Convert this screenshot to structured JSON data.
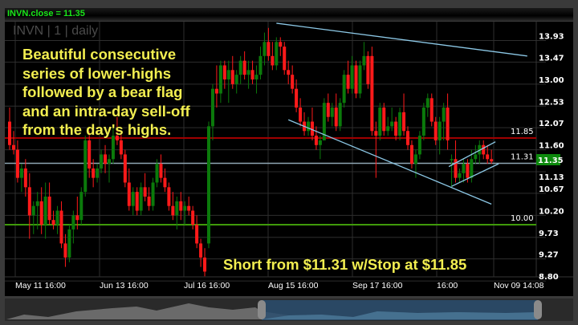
{
  "header": {
    "title": "INVN.close = 11.35"
  },
  "watermark": "INVN | 1 | daily",
  "annotations": {
    "main_note": [
      "Beautiful consecutive",
      "series of lower-highs",
      "followed by a bear flag",
      "and an intra-day sell-off",
      "from the day's highs."
    ],
    "trade_note": "Short from $11.31 w/Stop at $11.85"
  },
  "colors": {
    "up": "#0b7a0b",
    "down": "#ff1a1a",
    "stop_line": "#a00000",
    "entry_line": "#8fa6b4",
    "support_line": "#3f9a0a",
    "trend_line": "#8cc8e6",
    "note_text": "#f2ee50",
    "price_tag": "#0d8a0d"
  },
  "chart_data": {
    "type": "candlestick",
    "symbol": "INVN",
    "interval": "daily",
    "last_close": 11.35,
    "price_tag": "11.35",
    "y_ticks": [
      "13.93",
      "13.47",
      "13.00",
      "12.53",
      "12.07",
      "11.60",
      "11.13",
      "10.67",
      "10.20",
      "9.73",
      "9.27",
      "8.80"
    ],
    "ylim": [
      8.8,
      13.93
    ],
    "x_tick_labels": [
      "May 11 16:00",
      "Jun 13 16:00",
      "Jul 16 16:00",
      "Aug 15 16:00",
      "Sep 17 16:00",
      "16:00",
      "Nov 09 14:08"
    ],
    "grid": true,
    "horizontal_levels": [
      {
        "label": "11.85",
        "value": 11.85,
        "color_key": "stop_line"
      },
      {
        "label": "11.31",
        "value": 11.31,
        "color_key": "entry_line"
      },
      {
        "label": "10.00",
        "value": 10.0,
        "color_key": "support_line"
      }
    ],
    "trend_lines": [
      {
        "from": [
          67,
          14.3
        ],
        "to": [
          130,
          13.6
        ]
      },
      {
        "from": [
          70,
          12.24
        ],
        "to": [
          121,
          10.44
        ]
      },
      {
        "from": [
          110.3,
          11.24
        ],
        "to": [
          122,
          11.77
        ]
      },
      {
        "from": [
          111,
          10.82
        ],
        "to": [
          122.8,
          11.3
        ]
      }
    ],
    "ohlc": [
      [
        12.2,
        12.5,
        11.6,
        11.7
      ],
      [
        11.7,
        12.0,
        11.5,
        11.6
      ],
      [
        11.6,
        11.8,
        10.9,
        11.0
      ],
      [
        11.0,
        11.3,
        10.7,
        11.2
      ],
      [
        11.2,
        11.4,
        10.6,
        10.8
      ],
      [
        10.8,
        11.1,
        9.7,
        10.2
      ],
      [
        10.2,
        10.5,
        9.8,
        10.4
      ],
      [
        10.4,
        10.7,
        9.9,
        10.5
      ],
      [
        10.5,
        10.8,
        9.8,
        10.0
      ],
      [
        10.0,
        10.9,
        9.7,
        10.6
      ],
      [
        10.6,
        10.9,
        10.0,
        10.1
      ],
      [
        10.1,
        10.3,
        9.9,
        10.0
      ],
      [
        10.0,
        10.4,
        9.8,
        10.3
      ],
      [
        10.3,
        10.5,
        9.5,
        9.6
      ],
      [
        9.6,
        9.8,
        9.1,
        9.3
      ],
      [
        9.3,
        10.0,
        9.2,
        9.9
      ],
      [
        9.9,
        10.3,
        9.6,
        10.2
      ],
      [
        10.2,
        10.6,
        9.9,
        10.1
      ],
      [
        10.1,
        10.8,
        10.0,
        10.7
      ],
      [
        10.7,
        11.9,
        10.6,
        11.8
      ],
      [
        11.8,
        12.0,
        11.0,
        11.2
      ],
      [
        11.2,
        11.4,
        10.8,
        11.0
      ],
      [
        11.0,
        11.3,
        10.9,
        11.2
      ],
      [
        11.2,
        11.6,
        11.1,
        11.5
      ],
      [
        11.5,
        11.7,
        11.1,
        11.3
      ],
      [
        11.3,
        11.5,
        10.9,
        11.4
      ],
      [
        11.4,
        12.1,
        11.3,
        11.9
      ],
      [
        11.9,
        12.3,
        11.7,
        11.8
      ],
      [
        11.8,
        12.0,
        11.4,
        11.5
      ],
      [
        11.5,
        11.6,
        10.8,
        10.9
      ],
      [
        10.9,
        11.2,
        10.3,
        10.4
      ],
      [
        10.4,
        10.8,
        10.2,
        10.7
      ],
      [
        10.7,
        10.8,
        10.2,
        10.3
      ],
      [
        10.3,
        10.9,
        10.2,
        10.8
      ],
      [
        10.8,
        11.1,
        10.5,
        10.6
      ],
      [
        10.6,
        10.8,
        10.3,
        10.4
      ],
      [
        10.4,
        11.0,
        10.3,
        10.9
      ],
      [
        10.9,
        11.4,
        10.8,
        11.3
      ],
      [
        11.3,
        11.5,
        10.9,
        11.0
      ],
      [
        11.0,
        11.2,
        10.7,
        10.8
      ],
      [
        10.8,
        10.9,
        10.3,
        10.4
      ],
      [
        10.4,
        10.7,
        10.1,
        10.2
      ],
      [
        10.2,
        10.6,
        9.9,
        10.5
      ],
      [
        10.5,
        10.7,
        10.1,
        10.3
      ],
      [
        10.3,
        10.5,
        10.0,
        10.4
      ],
      [
        10.4,
        10.6,
        10.2,
        10.3
      ],
      [
        10.3,
        10.4,
        9.9,
        10.0
      ],
      [
        10.0,
        10.2,
        9.5,
        9.6
      ],
      [
        9.6,
        9.7,
        9.1,
        9.3
      ],
      [
        9.3,
        9.5,
        8.9,
        9.0
      ],
      [
        9.6,
        12.2,
        9.5,
        12.1
      ],
      [
        12.1,
        13.0,
        11.8,
        12.9
      ],
      [
        12.9,
        13.4,
        12.5,
        12.8
      ],
      [
        12.8,
        13.5,
        12.6,
        13.4
      ],
      [
        13.4,
        13.5,
        12.9,
        13.1
      ],
      [
        13.1,
        13.5,
        12.6,
        13.3
      ],
      [
        13.3,
        13.6,
        12.9,
        13.0
      ],
      [
        13.0,
        13.3,
        12.8,
        13.2
      ],
      [
        13.2,
        13.6,
        13.0,
        13.5
      ],
      [
        13.5,
        13.7,
        13.1,
        13.2
      ],
      [
        13.2,
        13.5,
        12.9,
        13.3
      ],
      [
        13.3,
        13.5,
        13.0,
        13.1
      ],
      [
        13.1,
        13.4,
        12.8,
        13.2
      ],
      [
        13.2,
        13.8,
        13.1,
        13.6
      ],
      [
        13.6,
        14.1,
        13.4,
        13.9
      ],
      [
        13.9,
        14.2,
        13.5,
        13.6
      ],
      [
        13.6,
        13.9,
        13.3,
        13.4
      ],
      [
        13.4,
        14.0,
        13.3,
        13.9
      ],
      [
        13.9,
        14.0,
        13.6,
        13.8
      ],
      [
        13.8,
        13.9,
        13.2,
        13.3
      ],
      [
        13.3,
        13.5,
        13.0,
        13.2
      ],
      [
        13.2,
        13.4,
        12.8,
        12.9
      ],
      [
        12.9,
        13.1,
        12.4,
        12.5
      ],
      [
        12.5,
        12.7,
        12.1,
        12.2
      ],
      [
        12.2,
        12.4,
        11.9,
        12.0
      ],
      [
        12.0,
        12.3,
        11.9,
        12.2
      ],
      [
        12.2,
        12.5,
        11.8,
        11.9
      ],
      [
        11.9,
        12.1,
        11.6,
        11.7
      ],
      [
        11.7,
        11.9,
        11.4,
        11.8
      ],
      [
        11.8,
        12.7,
        11.8,
        12.6
      ],
      [
        12.6,
        12.8,
        12.2,
        12.3
      ],
      [
        12.3,
        12.6,
        12.1,
        12.5
      ],
      [
        12.5,
        12.8,
        12.0,
        12.1
      ],
      [
        12.1,
        12.7,
        12.0,
        12.6
      ],
      [
        12.6,
        13.3,
        12.5,
        13.2
      ],
      [
        13.2,
        13.5,
        12.8,
        12.9
      ],
      [
        12.9,
        13.6,
        12.8,
        13.4
      ],
      [
        13.4,
        13.5,
        12.7,
        12.8
      ],
      [
        12.8,
        13.5,
        12.7,
        13.4
      ],
      [
        13.4,
        13.9,
        13.3,
        13.6
      ],
      [
        13.6,
        13.7,
        12.9,
        13.0
      ],
      [
        13.6,
        13.8,
        11.9,
        12.0
      ],
      [
        12.0,
        12.2,
        11.0,
        11.9
      ],
      [
        11.9,
        12.6,
        11.8,
        12.5
      ],
      [
        12.5,
        12.6,
        11.9,
        12.0
      ],
      [
        12.0,
        12.3,
        11.9,
        12.1
      ],
      [
        12.1,
        12.5,
        12.0,
        12.2
      ],
      [
        12.2,
        12.3,
        11.8,
        11.9
      ],
      [
        11.9,
        12.5,
        11.8,
        12.4
      ],
      [
        12.4,
        12.8,
        11.9,
        12.0
      ],
      [
        12.0,
        12.1,
        11.6,
        11.7
      ],
      [
        11.7,
        11.8,
        11.2,
        11.3
      ],
      [
        11.3,
        11.6,
        11.0,
        11.5
      ],
      [
        11.5,
        12.0,
        11.4,
        11.9
      ],
      [
        11.9,
        12.6,
        11.8,
        12.5
      ],
      [
        12.5,
        12.8,
        12.3,
        12.7
      ],
      [
        12.7,
        12.8,
        12.1,
        12.2
      ],
      [
        12.2,
        12.3,
        11.7,
        11.8
      ],
      [
        11.8,
        12.3,
        11.5,
        12.2
      ],
      [
        12.2,
        12.6,
        11.8,
        12.5
      ],
      [
        12.5,
        12.8,
        11.6,
        11.8
      ],
      [
        11.4,
        11.5,
        10.8,
        11.4
      ],
      [
        11.4,
        11.8,
        10.9,
        11.0
      ],
      [
        11.0,
        11.2,
        10.9,
        11.1
      ],
      [
        11.1,
        11.4,
        10.9,
        11.3
      ],
      [
        11.3,
        11.4,
        10.9,
        11.0
      ],
      [
        11.0,
        11.6,
        10.9,
        11.4
      ],
      [
        11.4,
        11.7,
        11.3,
        11.5
      ],
      [
        11.5,
        11.8,
        11.3,
        11.7
      ],
      [
        11.7,
        11.8,
        11.4,
        11.5
      ],
      [
        11.5,
        11.7,
        11.3,
        11.4
      ],
      [
        11.4,
        11.6,
        11.3,
        11.35
      ]
    ]
  }
}
